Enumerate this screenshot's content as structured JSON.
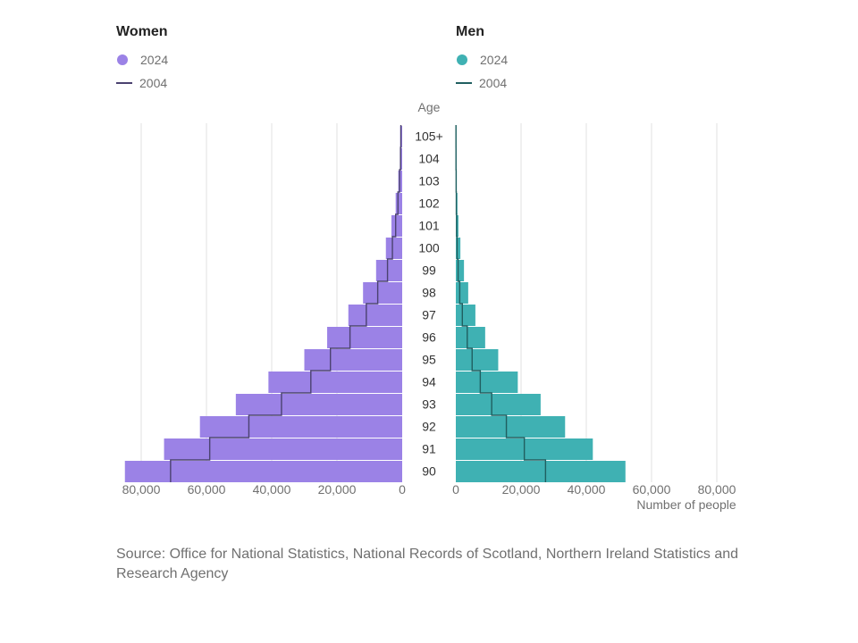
{
  "legend": {
    "women": {
      "title": "Women",
      "current": "2024",
      "previous": "2004",
      "bar_color": "#9b82e6",
      "line_color": "#4b4270"
    },
    "men": {
      "title": "Men",
      "current": "2024",
      "previous": "2004",
      "bar_color": "#3fb1b3",
      "line_color": "#205f60"
    }
  },
  "source": "Source: Office for National Statistics, National Records of Scotland, Northern Ireland Statistics and Research Agency",
  "chart_data": {
    "type": "bar",
    "orientation": "population-pyramid",
    "y_axis_title": "Age",
    "x_axis_title": "Number of people",
    "categories": [
      "90",
      "91",
      "92",
      "93",
      "94",
      "95",
      "96",
      "97",
      "98",
      "99",
      "100",
      "101",
      "102",
      "103",
      "104",
      "105+"
    ],
    "women": {
      "xlim": [
        0,
        85000
      ],
      "ticks": [
        0,
        20000,
        40000,
        60000,
        80000
      ],
      "tick_labels": [
        "0",
        "20,000",
        "40,000",
        "60,000",
        "80,000"
      ],
      "series": [
        {
          "name": "2024",
          "values": [
            85000,
            73000,
            62000,
            51000,
            41000,
            30000,
            23000,
            16500,
            12000,
            8000,
            5000,
            3300,
            2000,
            1200,
            700,
            600
          ]
        },
        {
          "name": "2004",
          "values": [
            71000,
            59000,
            47000,
            37000,
            28000,
            22000,
            16000,
            11000,
            7500,
            4500,
            3000,
            2000,
            1300,
            800,
            500,
            400
          ]
        }
      ]
    },
    "men": {
      "xlim": [
        0,
        85000
      ],
      "ticks": [
        0,
        20000,
        40000,
        60000,
        80000
      ],
      "tick_labels": [
        "0",
        "20,000",
        "40,000",
        "60,000",
        "80,000"
      ],
      "series": [
        {
          "name": "2024",
          "values": [
            52000,
            42000,
            33500,
            26000,
            19000,
            13000,
            9000,
            6000,
            3800,
            2500,
            1400,
            800,
            500,
            300,
            200,
            200
          ]
        },
        {
          "name": "2004",
          "values": [
            27500,
            21000,
            15500,
            11000,
            7500,
            5000,
            3500,
            2000,
            1200,
            700,
            400,
            250,
            150,
            100,
            60,
            50
          ]
        }
      ]
    },
    "grid": true
  }
}
